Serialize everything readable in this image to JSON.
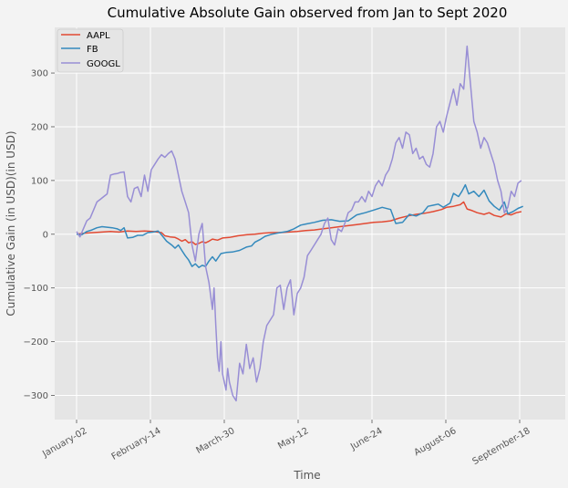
{
  "chart_data": {
    "type": "line",
    "title": "Cumulative Absolute Gain observed from Jan to Sept 2020",
    "xlabel": "Time",
    "ylabel": "Cumulative Gain (in USD)(in USD)",
    "x_ticks": [
      "January-02",
      "February-14",
      "March-30",
      "May-12",
      "June-24",
      "August-06",
      "September-18"
    ],
    "ylim": [
      -345,
      385
    ],
    "y_ticks": [
      -300,
      -200,
      -100,
      0,
      100,
      200,
      300
    ],
    "grid": true,
    "legend_position": "top-left",
    "series": [
      {
        "name": "AAPL",
        "color": "#e24a33",
        "points": [
          [
            0,
            0
          ],
          [
            5,
            2
          ],
          [
            10,
            3
          ],
          [
            15,
            4
          ],
          [
            20,
            5
          ],
          [
            25,
            4
          ],
          [
            30,
            6
          ],
          [
            35,
            5
          ],
          [
            40,
            6
          ],
          [
            45,
            5
          ],
          [
            50,
            3
          ],
          [
            52,
            -3
          ],
          [
            55,
            -5
          ],
          [
            58,
            -6
          ],
          [
            60,
            -9
          ],
          [
            62,
            -13
          ],
          [
            64,
            -10
          ],
          [
            66,
            -16
          ],
          [
            68,
            -14
          ],
          [
            70,
            -19
          ],
          [
            72,
            -17
          ],
          [
            74,
            -14
          ],
          [
            76,
            -16
          ],
          [
            78,
            -13
          ],
          [
            80,
            -9
          ],
          [
            83,
            -11
          ],
          [
            86,
            -7
          ],
          [
            90,
            -6
          ],
          [
            95,
            -3
          ],
          [
            100,
            -1
          ],
          [
            105,
            0
          ],
          [
            110,
            2
          ],
          [
            115,
            3
          ],
          [
            120,
            3
          ],
          [
            125,
            4
          ],
          [
            130,
            5
          ],
          [
            135,
            7
          ],
          [
            140,
            8
          ],
          [
            145,
            10
          ],
          [
            150,
            12
          ],
          [
            155,
            14
          ],
          [
            160,
            16
          ],
          [
            165,
            18
          ],
          [
            170,
            20
          ],
          [
            175,
            22
          ],
          [
            180,
            23
          ],
          [
            185,
            25
          ],
          [
            190,
            30
          ],
          [
            195,
            34
          ],
          [
            200,
            37
          ],
          [
            205,
            39
          ],
          [
            210,
            42
          ],
          [
            215,
            46
          ],
          [
            218,
            50
          ],
          [
            222,
            52
          ],
          [
            226,
            55
          ],
          [
            228,
            60
          ],
          [
            230,
            47
          ],
          [
            233,
            44
          ],
          [
            236,
            40
          ],
          [
            240,
            37
          ],
          [
            243,
            40
          ],
          [
            246,
            35
          ],
          [
            250,
            32
          ],
          [
            253,
            38
          ],
          [
            256,
            36
          ],
          [
            259,
            40
          ],
          [
            262,
            42
          ]
        ]
      },
      {
        "name": "FB",
        "color": "#348abd",
        "points": [
          [
            0,
            0
          ],
          [
            3,
            -1
          ],
          [
            6,
            5
          ],
          [
            9,
            8
          ],
          [
            12,
            12
          ],
          [
            15,
            14
          ],
          [
            18,
            13
          ],
          [
            21,
            12
          ],
          [
            24,
            10
          ],
          [
            26,
            7
          ],
          [
            28,
            12
          ],
          [
            30,
            -7
          ],
          [
            33,
            -6
          ],
          [
            36,
            -2
          ],
          [
            39,
            -2
          ],
          [
            42,
            3
          ],
          [
            45,
            4
          ],
          [
            48,
            6
          ],
          [
            50,
            -1
          ],
          [
            53,
            -13
          ],
          [
            56,
            -20
          ],
          [
            58,
            -26
          ],
          [
            60,
            -20
          ],
          [
            62,
            -30
          ],
          [
            64,
            -40
          ],
          [
            66,
            -48
          ],
          [
            68,
            -60
          ],
          [
            70,
            -55
          ],
          [
            72,
            -62
          ],
          [
            74,
            -58
          ],
          [
            76,
            -60
          ],
          [
            78,
            -50
          ],
          [
            80,
            -42
          ],
          [
            82,
            -50
          ],
          [
            85,
            -36
          ],
          [
            88,
            -34
          ],
          [
            92,
            -33
          ],
          [
            96,
            -30
          ],
          [
            100,
            -24
          ],
          [
            103,
            -22
          ],
          [
            105,
            -15
          ],
          [
            108,
            -10
          ],
          [
            111,
            -4
          ],
          [
            115,
            0
          ],
          [
            120,
            3
          ],
          [
            124,
            5
          ],
          [
            128,
            10
          ],
          [
            132,
            17
          ],
          [
            135,
            19
          ],
          [
            140,
            22
          ],
          [
            145,
            26
          ],
          [
            150,
            27
          ],
          [
            155,
            24
          ],
          [
            160,
            25
          ],
          [
            165,
            36
          ],
          [
            170,
            40
          ],
          [
            175,
            45
          ],
          [
            180,
            50
          ],
          [
            185,
            46
          ],
          [
            188,
            20
          ],
          [
            192,
            22
          ],
          [
            196,
            37
          ],
          [
            200,
            34
          ],
          [
            204,
            40
          ],
          [
            207,
            52
          ],
          [
            210,
            54
          ],
          [
            213,
            56
          ],
          [
            216,
            50
          ],
          [
            220,
            58
          ],
          [
            222,
            76
          ],
          [
            225,
            70
          ],
          [
            227,
            80
          ],
          [
            229,
            92
          ],
          [
            231,
            75
          ],
          [
            234,
            80
          ],
          [
            237,
            70
          ],
          [
            240,
            82
          ],
          [
            243,
            62
          ],
          [
            246,
            52
          ],
          [
            249,
            45
          ],
          [
            252,
            60
          ],
          [
            254,
            38
          ],
          [
            257,
            42
          ],
          [
            260,
            48
          ],
          [
            263,
            52
          ]
        ]
      },
      {
        "name": "GOOGL",
        "color": "#988ed5",
        "points": [
          [
            0,
            5
          ],
          [
            2,
            -5
          ],
          [
            4,
            10
          ],
          [
            6,
            25
          ],
          [
            8,
            30
          ],
          [
            10,
            45
          ],
          [
            12,
            60
          ],
          [
            14,
            65
          ],
          [
            16,
            70
          ],
          [
            18,
            75
          ],
          [
            20,
            110
          ],
          [
            22,
            112
          ],
          [
            24,
            113
          ],
          [
            26,
            115
          ],
          [
            28,
            116
          ],
          [
            30,
            70
          ],
          [
            32,
            60
          ],
          [
            34,
            85
          ],
          [
            36,
            88
          ],
          [
            38,
            70
          ],
          [
            40,
            110
          ],
          [
            42,
            80
          ],
          [
            44,
            120
          ],
          [
            46,
            130
          ],
          [
            48,
            140
          ],
          [
            50,
            148
          ],
          [
            52,
            143
          ],
          [
            54,
            150
          ],
          [
            56,
            155
          ],
          [
            58,
            140
          ],
          [
            60,
            110
          ],
          [
            62,
            80
          ],
          [
            64,
            60
          ],
          [
            66,
            40
          ],
          [
            68,
            -20
          ],
          [
            70,
            -50
          ],
          [
            72,
            0
          ],
          [
            74,
            20
          ],
          [
            76,
            -60
          ],
          [
            78,
            -90
          ],
          [
            80,
            -140
          ],
          [
            81,
            -100
          ],
          [
            82,
            -170
          ],
          [
            83,
            -230
          ],
          [
            84,
            -255
          ],
          [
            85,
            -200
          ],
          [
            86,
            -260
          ],
          [
            88,
            -290
          ],
          [
            89,
            -250
          ],
          [
            90,
            -275
          ],
          [
            92,
            -300
          ],
          [
            94,
            -310
          ],
          [
            96,
            -240
          ],
          [
            98,
            -260
          ],
          [
            100,
            -205
          ],
          [
            102,
            -250
          ],
          [
            104,
            -230
          ],
          [
            106,
            -275
          ],
          [
            108,
            -250
          ],
          [
            110,
            -200
          ],
          [
            112,
            -170
          ],
          [
            114,
            -160
          ],
          [
            116,
            -150
          ],
          [
            118,
            -100
          ],
          [
            120,
            -95
          ],
          [
            122,
            -140
          ],
          [
            124,
            -100
          ],
          [
            126,
            -85
          ],
          [
            128,
            -150
          ],
          [
            130,
            -110
          ],
          [
            132,
            -100
          ],
          [
            134,
            -80
          ],
          [
            136,
            -40
          ],
          [
            138,
            -30
          ],
          [
            140,
            -20
          ],
          [
            142,
            -10
          ],
          [
            144,
            0
          ],
          [
            146,
            20
          ],
          [
            148,
            30
          ],
          [
            150,
            -10
          ],
          [
            152,
            -20
          ],
          [
            154,
            10
          ],
          [
            156,
            5
          ],
          [
            158,
            20
          ],
          [
            160,
            40
          ],
          [
            162,
            45
          ],
          [
            164,
            60
          ],
          [
            166,
            60
          ],
          [
            168,
            70
          ],
          [
            170,
            60
          ],
          [
            172,
            80
          ],
          [
            174,
            70
          ],
          [
            176,
            90
          ],
          [
            178,
            100
          ],
          [
            180,
            90
          ],
          [
            182,
            110
          ],
          [
            184,
            120
          ],
          [
            186,
            140
          ],
          [
            188,
            170
          ],
          [
            190,
            180
          ],
          [
            192,
            160
          ],
          [
            194,
            190
          ],
          [
            196,
            185
          ],
          [
            198,
            150
          ],
          [
            200,
            160
          ],
          [
            202,
            140
          ],
          [
            204,
            145
          ],
          [
            206,
            130
          ],
          [
            208,
            125
          ],
          [
            210,
            150
          ],
          [
            212,
            200
          ],
          [
            214,
            210
          ],
          [
            216,
            190
          ],
          [
            218,
            220
          ],
          [
            220,
            245
          ],
          [
            222,
            270
          ],
          [
            224,
            240
          ],
          [
            226,
            280
          ],
          [
            228,
            270
          ],
          [
            230,
            350
          ],
          [
            232,
            280
          ],
          [
            234,
            210
          ],
          [
            236,
            190
          ],
          [
            238,
            160
          ],
          [
            240,
            180
          ],
          [
            242,
            170
          ],
          [
            244,
            150
          ],
          [
            246,
            130
          ],
          [
            248,
            100
          ],
          [
            250,
            80
          ],
          [
            252,
            40
          ],
          [
            254,
            50
          ],
          [
            256,
            80
          ],
          [
            258,
            70
          ],
          [
            260,
            95
          ],
          [
            262,
            100
          ]
        ]
      }
    ]
  }
}
